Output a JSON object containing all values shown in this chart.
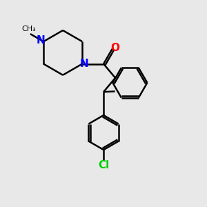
{
  "background_color": "#e8e8e8",
  "bond_color": "#000000",
  "N_color": "#0000ff",
  "O_color": "#ff0000",
  "Cl_color": "#00cc00",
  "line_width": 1.8,
  "figsize": [
    3.0,
    3.0
  ],
  "dpi": 100,
  "xlim": [
    0,
    10
  ],
  "ylim": [
    0,
    10
  ]
}
